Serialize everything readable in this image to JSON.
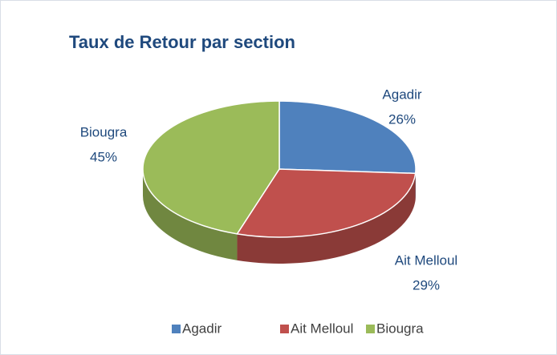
{
  "chart_data": {
    "type": "pie",
    "title": "Taux de Retour par section",
    "categories": [
      "Agadir",
      "Ait Melloul",
      "Biougra"
    ],
    "values": [
      26,
      29,
      45
    ],
    "value_labels": [
      "26%",
      "29%",
      "45%"
    ],
    "colors": [
      "#4f81bd",
      "#c0504d",
      "#9bbb59"
    ],
    "legend": "bottom"
  }
}
